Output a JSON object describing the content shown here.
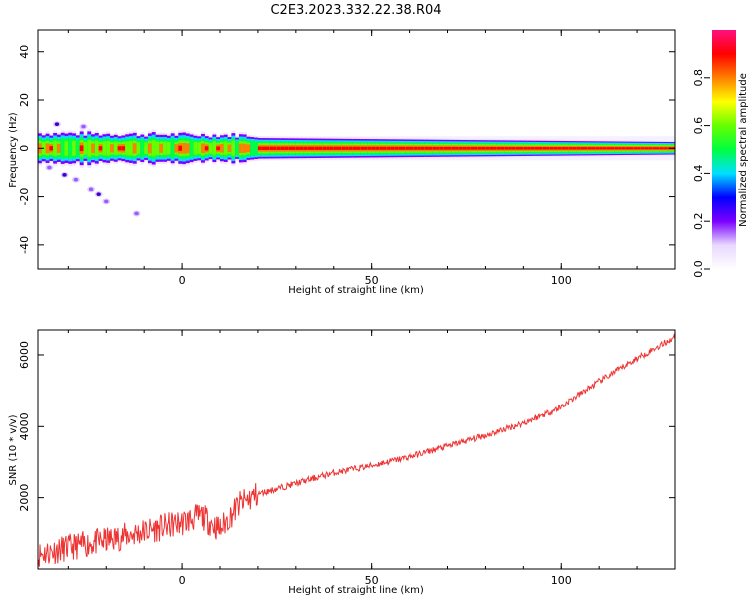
{
  "title": "C2E3.2023.332.22.38.R04",
  "chart_data": [
    {
      "type": "heatmap",
      "xlabel": "Height of straight line (km)",
      "ylabel": "Frequency (Hz)",
      "xlim": [
        -38,
        130
      ],
      "ylim": [
        -50,
        49
      ],
      "xticks": [
        0,
        50,
        100
      ],
      "yticks": [
        -40,
        -20,
        0,
        20,
        40
      ],
      "colorbar": {
        "label": "Normalized spectral amplitude",
        "range": [
          0,
          1
        ],
        "ticks": [
          "0.0",
          "0.2",
          "0.4",
          "0.6",
          "0.8"
        ],
        "colormap": "gist_ncar-like (white, violet, blue, cyan, green, yellow, orange, red, magenta)",
        "stops": [
          "#ffffff",
          "#e8d8ff",
          "#7a00ff",
          "#0000ff",
          "#00e0ff",
          "#00ff40",
          "#66ff00",
          "#ffff00",
          "#ff8000",
          "#ff0000",
          "#ff1080"
        ]
      },
      "ridge": {
        "description": "dominant spectral energy band centered near 0 Hz",
        "center_hz": 0,
        "halfwidth_hz_left": 6,
        "halfwidth_hz_right": 3
      },
      "scattered_blobs": [
        {
          "x": -35,
          "y": -8
        },
        {
          "x": -31,
          "y": -11
        },
        {
          "x": -28,
          "y": -13
        },
        {
          "x": -24,
          "y": -17
        },
        {
          "x": -22,
          "y": -19
        },
        {
          "x": -20,
          "y": -22
        },
        {
          "x": -12,
          "y": -27
        },
        {
          "x": -33,
          "y": 10
        },
        {
          "x": -26,
          "y": 9
        }
      ]
    },
    {
      "type": "line",
      "xlabel": "Height of straight line (km)",
      "ylabel": "SNR (10 * v/v)",
      "xlim": [
        -38,
        130
      ],
      "ylim": [
        0,
        6700
      ],
      "xticks": [
        0,
        50,
        100
      ],
      "yticks": [
        2000,
        4000,
        6000
      ],
      "color": "#ee3333",
      "series": [
        {
          "x": [
            -38,
            -30,
            -20,
            -10,
            0,
            5,
            10,
            15,
            20,
            30,
            40,
            50,
            60,
            70,
            80,
            90,
            100,
            110,
            120,
            130
          ],
          "values": [
            400,
            600,
            800,
            1050,
            1300,
            1500,
            1100,
            1800,
            2100,
            2400,
            2700,
            2900,
            3150,
            3450,
            3750,
            4100,
            4550,
            5250,
            5900,
            6500
          ]
        }
      ]
    }
  ]
}
